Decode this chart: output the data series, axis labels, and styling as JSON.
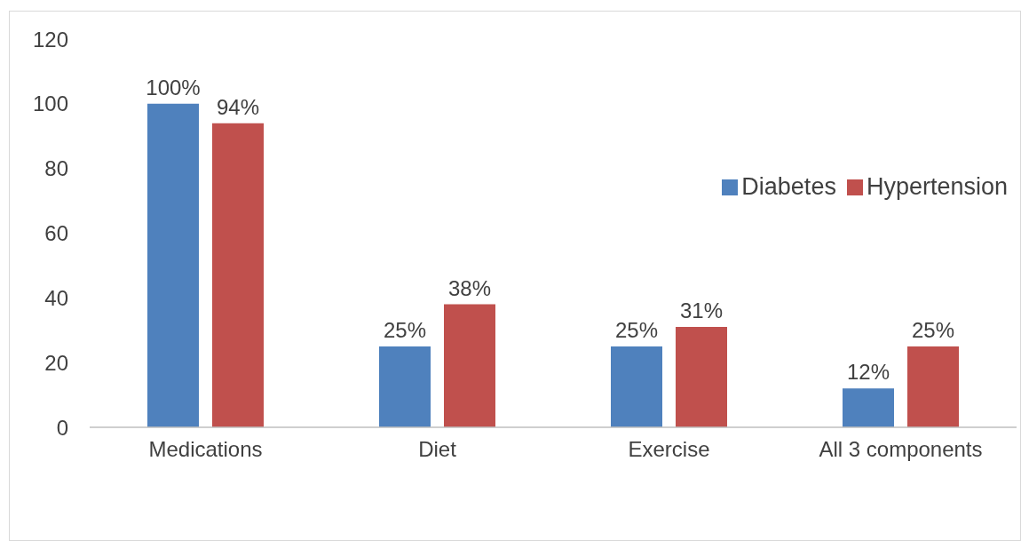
{
  "chart_data": {
    "type": "bar",
    "categories": [
      "Medications",
      "Diet",
      "Exercise",
      "All 3 components"
    ],
    "series": [
      {
        "name": "Diabetes",
        "color": "#4f81bd",
        "values": [
          100,
          25,
          25,
          12
        ],
        "value_labels": [
          "100%",
          "25%",
          "25%",
          "12%"
        ]
      },
      {
        "name": "Hypertension",
        "color": "#c0504d",
        "values": [
          94,
          38,
          31,
          25
        ],
        "value_labels": [
          "94%",
          "38%",
          "31%",
          "25%"
        ]
      }
    ],
    "ylim": [
      0,
      120
    ],
    "yticks": [
      0,
      20,
      40,
      60,
      80,
      100,
      120
    ],
    "grid": false,
    "legend": "right"
  }
}
